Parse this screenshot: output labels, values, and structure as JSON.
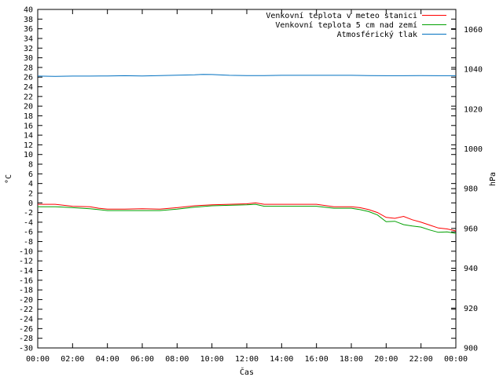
{
  "chart_data": {
    "type": "line",
    "title": "",
    "xlabel": "Čas",
    "ylabel": "°C",
    "y2label": "hPa",
    "grid": false,
    "legend_position": "top-right",
    "x_ticks": [
      "00:00",
      "02:00",
      "04:00",
      "06:00",
      "08:00",
      "10:00",
      "12:00",
      "14:00",
      "16:00",
      "18:00",
      "20:00",
      "22:00",
      "00:00"
    ],
    "xlim_hours": [
      0,
      24
    ],
    "ylim": [
      -30,
      40
    ],
    "y_ticks": [
      40,
      38,
      36,
      34,
      32,
      30,
      28,
      26,
      24,
      22,
      20,
      18,
      16,
      14,
      12,
      10,
      8,
      6,
      4,
      2,
      0,
      -2,
      -4,
      -6,
      -8,
      -10,
      -12,
      -14,
      -16,
      -18,
      -20,
      -22,
      -24,
      -26,
      -28,
      -30
    ],
    "y2lim": [
      900,
      1070
    ],
    "y2_ticks": [
      1060,
      1040,
      1020,
      1000,
      980,
      960,
      940,
      920,
      900
    ],
    "series": [
      {
        "name": "Venkovní teplota v meteo stanici",
        "color": "#ff0000",
        "axis": "left",
        "x": [
          0,
          1,
          1.5,
          2,
          3,
          3.5,
          4,
          5,
          6,
          7,
          8,
          9,
          10,
          11,
          12,
          12.5,
          13,
          14,
          15,
          16,
          17,
          18,
          18.5,
          19,
          19.5,
          20,
          20.5,
          21,
          21.5,
          22,
          22.5,
          23,
          23.5,
          24
        ],
        "y": [
          -0.3,
          -0.3,
          -0.5,
          -0.7,
          -0.8,
          -1.1,
          -1.3,
          -1.3,
          -1.2,
          -1.3,
          -1.0,
          -0.6,
          -0.4,
          -0.3,
          -0.2,
          0.0,
          -0.3,
          -0.3,
          -0.3,
          -0.3,
          -0.8,
          -0.8,
          -1.0,
          -1.4,
          -2.0,
          -3.0,
          -3.2,
          -2.8,
          -3.5,
          -4.0,
          -4.6,
          -5.2,
          -5.4,
          -5.8
        ]
      },
      {
        "name": "Venkovní teplota 5 cm nad zemí",
        "color": "#00a000",
        "axis": "left",
        "x": [
          0,
          1,
          1.5,
          2,
          3,
          3.5,
          4,
          5,
          6,
          7,
          8,
          9,
          10,
          11,
          12,
          12.5,
          13,
          14,
          15,
          16,
          17,
          18,
          18.5,
          19,
          19.5,
          20,
          20.5,
          21,
          21.5,
          22,
          22.5,
          23,
          23.5,
          24
        ],
        "y": [
          -0.8,
          -0.8,
          -0.9,
          -1.0,
          -1.2,
          -1.4,
          -1.6,
          -1.6,
          -1.6,
          -1.6,
          -1.3,
          -0.9,
          -0.6,
          -0.5,
          -0.4,
          -0.3,
          -0.7,
          -0.7,
          -0.7,
          -0.7,
          -1.1,
          -1.1,
          -1.4,
          -1.8,
          -2.5,
          -3.9,
          -3.8,
          -4.5,
          -4.8,
          -5.0,
          -5.6,
          -6.1,
          -6.0,
          -6.3
        ]
      },
      {
        "name": "Atmosférický tlak",
        "color": "#0070c0",
        "axis": "right",
        "x": [
          0,
          1,
          2,
          3,
          4,
          5,
          6,
          7,
          8,
          9,
          9.5,
          10,
          11,
          12,
          13,
          14,
          15,
          16,
          17,
          18,
          19,
          20,
          21,
          22,
          23,
          24
        ],
        "y": [
          1036.5,
          1036.4,
          1036.5,
          1036.5,
          1036.6,
          1036.7,
          1036.6,
          1036.8,
          1037.0,
          1037.2,
          1037.4,
          1037.3,
          1036.9,
          1036.8,
          1036.8,
          1036.9,
          1036.9,
          1036.9,
          1036.9,
          1036.9,
          1036.8,
          1036.7,
          1036.7,
          1036.8,
          1036.7,
          1036.7
        ]
      }
    ]
  }
}
